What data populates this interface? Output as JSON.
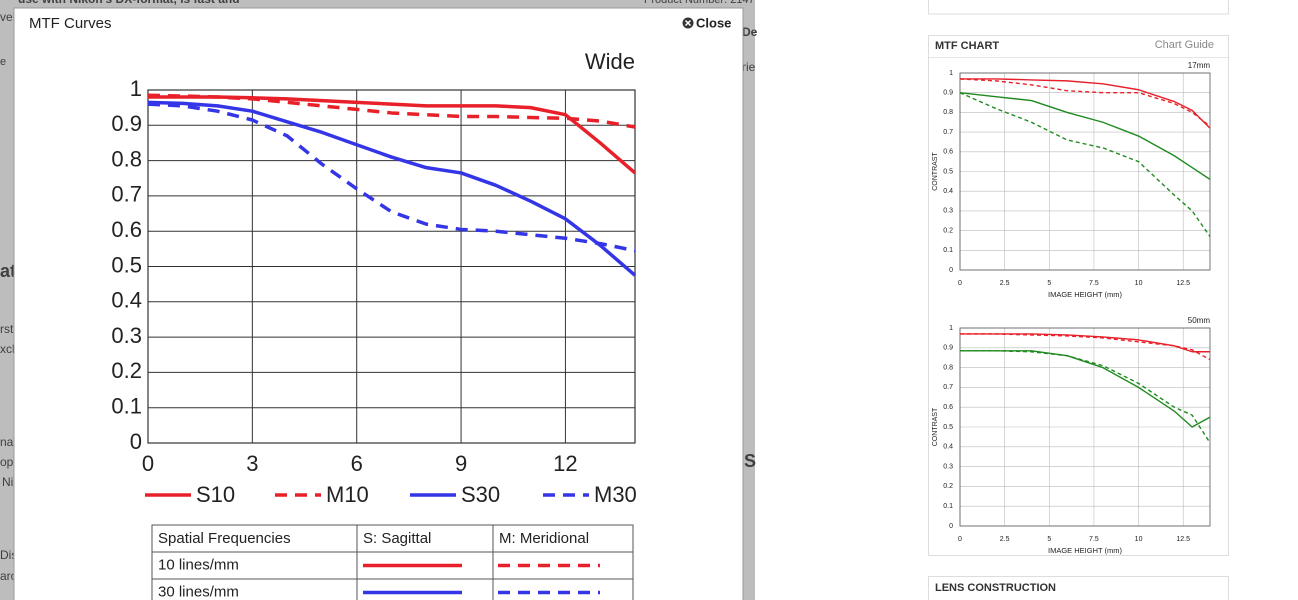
{
  "background": {
    "texts": [
      "use with Nikon's DX-format, is fast and",
      "vel",
      "Product Number: 2147",
      "e",
      "atu",
      "rst",
      "xcl",
      "nal",
      "opt",
      "Ni",
      "Disp",
      "aro",
      "De",
      "rie",
      "S"
    ]
  },
  "modal": {
    "title": "MTF Curves",
    "close": "Close",
    "chart_data": {
      "type": "line",
      "label": "Wide",
      "x": [
        0,
        1,
        2,
        3,
        4,
        5,
        6,
        7,
        8,
        9,
        10,
        11,
        12,
        13,
        14
      ],
      "xlim": [
        0,
        14
      ],
      "xticks": [
        0,
        3,
        6,
        9,
        12
      ],
      "ylim": [
        0,
        1
      ],
      "yticks": [
        0,
        0.1,
        0.2,
        0.3,
        0.4,
        0.5,
        0.6,
        0.7,
        0.8,
        0.9,
        1
      ],
      "grid": true,
      "series": [
        {
          "name": "S10",
          "color": "#e8202a",
          "style": "solid",
          "values": [
            0.98,
            0.98,
            0.98,
            0.978,
            0.975,
            0.97,
            0.965,
            0.96,
            0.955,
            0.955,
            0.955,
            0.95,
            0.93,
            0.85,
            0.765
          ]
        },
        {
          "name": "M10",
          "color": "#e8202a",
          "style": "dashed",
          "values": [
            0.985,
            0.983,
            0.98,
            0.975,
            0.965,
            0.955,
            0.945,
            0.935,
            0.93,
            0.925,
            0.925,
            0.922,
            0.92,
            0.912,
            0.895
          ]
        },
        {
          "name": "S30",
          "color": "#3535e8",
          "style": "solid",
          "values": [
            0.965,
            0.962,
            0.955,
            0.94,
            0.91,
            0.88,
            0.845,
            0.81,
            0.78,
            0.765,
            0.73,
            0.685,
            0.635,
            0.56,
            0.475
          ]
        },
        {
          "name": "M30",
          "color": "#3535e8",
          "style": "dashed",
          "values": [
            0.96,
            0.955,
            0.94,
            0.915,
            0.87,
            0.79,
            0.72,
            0.655,
            0.62,
            0.605,
            0.6,
            0.59,
            0.58,
            0.565,
            0.545
          ]
        }
      ]
    },
    "table": {
      "header": [
        "Spatial Frequencies",
        "S: Sagittal",
        "M: Meridional"
      ],
      "rows": [
        "10 lines/mm",
        "30 lines/mm"
      ]
    }
  },
  "sidebar": {
    "title": "MTF CHART",
    "guide": "Chart Guide",
    "charts": [
      {
        "type": "line",
        "label": "17mm",
        "ylabel": "CONTRAST",
        "xlabel": "IMAGE HEIGHT (mm)",
        "x": [
          0,
          2,
          4,
          6,
          8,
          10,
          12,
          13,
          14
        ],
        "xlim": [
          0,
          14
        ],
        "xticks": [
          0,
          2.5,
          5,
          7.5,
          10,
          12.5
        ],
        "ylim": [
          0,
          1
        ],
        "yticks": [
          0,
          0.1,
          0.2,
          0.3,
          0.4,
          0.5,
          0.6,
          0.7,
          0.8,
          0.9,
          1
        ],
        "grid": true,
        "series": [
          {
            "color": "#e8202a",
            "style": "solid",
            "values": [
              0.97,
              0.97,
              0.965,
              0.96,
              0.945,
              0.915,
              0.855,
              0.81,
              0.72
            ]
          },
          {
            "color": "#e8202a",
            "style": "dashed",
            "values": [
              0.97,
              0.96,
              0.94,
              0.91,
              0.9,
              0.9,
              0.845,
              0.8,
              0.73
            ]
          },
          {
            "color": "#1f8a1f",
            "style": "solid",
            "values": [
              0.9,
              0.88,
              0.86,
              0.8,
              0.75,
              0.68,
              0.58,
              0.52,
              0.46
            ]
          },
          {
            "color": "#1f8a1f",
            "style": "dashed",
            "values": [
              0.9,
              0.82,
              0.75,
              0.66,
              0.62,
              0.55,
              0.38,
              0.3,
              0.17
            ]
          }
        ]
      },
      {
        "type": "line",
        "label": "50mm",
        "ylabel": "CONTRAST",
        "xlabel": "IMAGE HEIGHT (mm)",
        "x": [
          0,
          2,
          4,
          6,
          8,
          10,
          12,
          13,
          14
        ],
        "xlim": [
          0,
          14
        ],
        "xticks": [
          0,
          2.5,
          5,
          7.5,
          10,
          12.5
        ],
        "ylim": [
          0,
          1
        ],
        "yticks": [
          0,
          0.1,
          0.2,
          0.3,
          0.4,
          0.5,
          0.6,
          0.7,
          0.8,
          0.9,
          1
        ],
        "grid": true,
        "series": [
          {
            "color": "#e8202a",
            "style": "solid",
            "values": [
              0.97,
              0.97,
              0.97,
              0.965,
              0.955,
              0.94,
              0.91,
              0.88,
              0.88
            ]
          },
          {
            "color": "#e8202a",
            "style": "dashed",
            "values": [
              0.97,
              0.97,
              0.965,
              0.96,
              0.95,
              0.93,
              0.91,
              0.89,
              0.84
            ]
          },
          {
            "color": "#1f8a1f",
            "style": "solid",
            "values": [
              0.885,
              0.885,
              0.885,
              0.86,
              0.8,
              0.7,
              0.58,
              0.5,
              0.55
            ]
          },
          {
            "color": "#1f8a1f",
            "style": "dashed",
            "values": [
              0.885,
              0.885,
              0.88,
              0.86,
              0.81,
              0.72,
              0.6,
              0.56,
              0.42
            ]
          }
        ]
      }
    ],
    "lens_title": "LENS CONSTRUCTION"
  }
}
